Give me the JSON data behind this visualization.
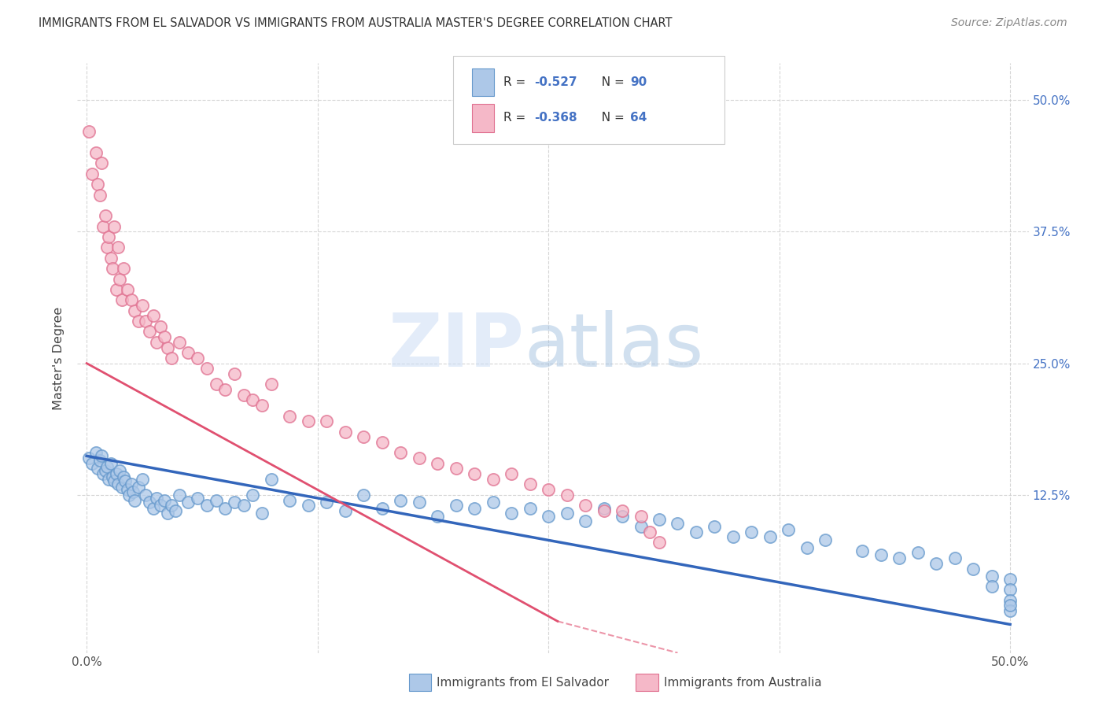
{
  "title": "IMMIGRANTS FROM EL SALVADOR VS IMMIGRANTS FROM AUSTRALIA MASTER'S DEGREE CORRELATION CHART",
  "source": "Source: ZipAtlas.com",
  "ylabel": "Master's Degree",
  "color_el_salvador_fill": "#adc8e8",
  "color_el_salvador_edge": "#6699cc",
  "color_australia_fill": "#f5b8c8",
  "color_australia_edge": "#e07090",
  "color_blue_line": "#3366bb",
  "color_pink_line": "#e05070",
  "color_blue_text": "#4472c4",
  "watermark_zip_color": "#ccddf0",
  "watermark_atlas_color": "#99bbdd",
  "legend_r1_val": "-0.527",
  "legend_n1_val": "90",
  "legend_r2_val": "-0.368",
  "legend_n2_val": "64",
  "xlim": [
    0.0,
    0.5
  ],
  "ylim": [
    0.0,
    0.52
  ],
  "el_salvador_x": [
    0.001,
    0.003,
    0.005,
    0.006,
    0.007,
    0.008,
    0.009,
    0.01,
    0.011,
    0.012,
    0.013,
    0.014,
    0.015,
    0.016,
    0.017,
    0.018,
    0.019,
    0.02,
    0.021,
    0.022,
    0.023,
    0.024,
    0.025,
    0.026,
    0.028,
    0.03,
    0.032,
    0.034,
    0.036,
    0.038,
    0.04,
    0.042,
    0.044,
    0.046,
    0.048,
    0.05,
    0.055,
    0.06,
    0.065,
    0.07,
    0.075,
    0.08,
    0.085,
    0.09,
    0.095,
    0.1,
    0.11,
    0.12,
    0.13,
    0.14,
    0.15,
    0.16,
    0.17,
    0.18,
    0.19,
    0.2,
    0.21,
    0.22,
    0.23,
    0.24,
    0.25,
    0.26,
    0.27,
    0.28,
    0.29,
    0.3,
    0.31,
    0.32,
    0.33,
    0.34,
    0.35,
    0.36,
    0.37,
    0.38,
    0.39,
    0.4,
    0.42,
    0.43,
    0.44,
    0.45,
    0.46,
    0.47,
    0.48,
    0.49,
    0.49,
    0.5,
    0.5,
    0.5,
    0.5,
    0.5
  ],
  "el_salvador_y": [
    0.16,
    0.155,
    0.165,
    0.15,
    0.158,
    0.162,
    0.145,
    0.148,
    0.152,
    0.14,
    0.155,
    0.142,
    0.138,
    0.145,
    0.135,
    0.148,
    0.132,
    0.142,
    0.138,
    0.13,
    0.125,
    0.135,
    0.128,
    0.12,
    0.132,
    0.14,
    0.125,
    0.118,
    0.112,
    0.122,
    0.115,
    0.12,
    0.108,
    0.115,
    0.11,
    0.125,
    0.118,
    0.122,
    0.115,
    0.12,
    0.112,
    0.118,
    0.115,
    0.125,
    0.108,
    0.14,
    0.12,
    0.115,
    0.118,
    0.11,
    0.125,
    0.112,
    0.12,
    0.118,
    0.105,
    0.115,
    0.112,
    0.118,
    0.108,
    0.112,
    0.105,
    0.108,
    0.1,
    0.112,
    0.105,
    0.095,
    0.102,
    0.098,
    0.09,
    0.095,
    0.085,
    0.09,
    0.085,
    0.092,
    0.075,
    0.082,
    0.072,
    0.068,
    0.065,
    0.07,
    0.06,
    0.065,
    0.055,
    0.048,
    0.038,
    0.045,
    0.035,
    0.025,
    0.015,
    0.02
  ],
  "australia_x": [
    0.001,
    0.003,
    0.005,
    0.006,
    0.007,
    0.008,
    0.009,
    0.01,
    0.011,
    0.012,
    0.013,
    0.014,
    0.015,
    0.016,
    0.017,
    0.018,
    0.019,
    0.02,
    0.022,
    0.024,
    0.026,
    0.028,
    0.03,
    0.032,
    0.034,
    0.036,
    0.038,
    0.04,
    0.042,
    0.044,
    0.046,
    0.05,
    0.055,
    0.06,
    0.065,
    0.07,
    0.075,
    0.08,
    0.085,
    0.09,
    0.095,
    0.1,
    0.11,
    0.12,
    0.13,
    0.14,
    0.15,
    0.16,
    0.17,
    0.18,
    0.19,
    0.2,
    0.21,
    0.22,
    0.23,
    0.24,
    0.25,
    0.26,
    0.27,
    0.28,
    0.29,
    0.3,
    0.305,
    0.31
  ],
  "australia_y": [
    0.47,
    0.43,
    0.45,
    0.42,
    0.41,
    0.44,
    0.38,
    0.39,
    0.36,
    0.37,
    0.35,
    0.34,
    0.38,
    0.32,
    0.36,
    0.33,
    0.31,
    0.34,
    0.32,
    0.31,
    0.3,
    0.29,
    0.305,
    0.29,
    0.28,
    0.295,
    0.27,
    0.285,
    0.275,
    0.265,
    0.255,
    0.27,
    0.26,
    0.255,
    0.245,
    0.23,
    0.225,
    0.24,
    0.22,
    0.215,
    0.21,
    0.23,
    0.2,
    0.195,
    0.195,
    0.185,
    0.18,
    0.175,
    0.165,
    0.16,
    0.155,
    0.15,
    0.145,
    0.14,
    0.145,
    0.135,
    0.13,
    0.125,
    0.115,
    0.11,
    0.11,
    0.105,
    0.09,
    0.08
  ]
}
